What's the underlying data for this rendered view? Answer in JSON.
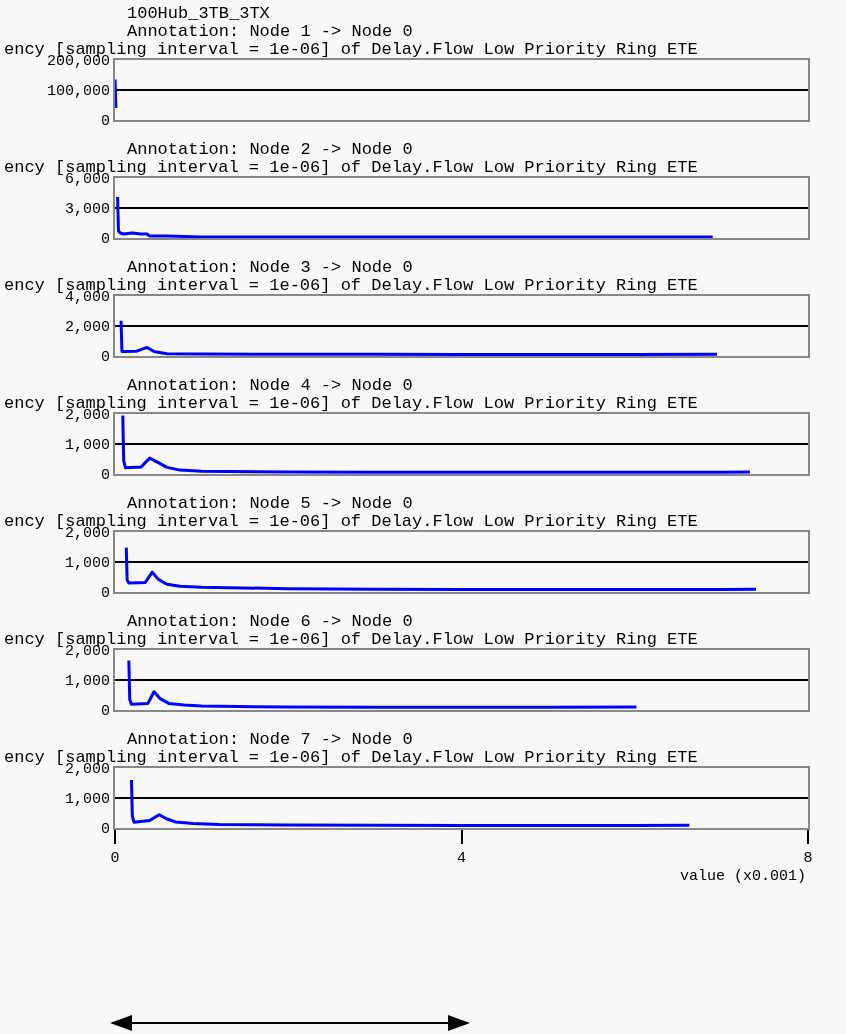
{
  "chart_data": [
    {
      "type": "line",
      "title": "100Hub_3TB_3TX",
      "subtitle": "Annotation: Node 1 -> Node 0",
      "ylabel": "ency [sampling interval = 1e-06] of Delay.Flow Low Priority Ring ETE",
      "xlim": [
        0,
        8
      ],
      "ylim": [
        0,
        200000
      ],
      "yticks": [
        {
          "value": 0,
          "label": "0"
        },
        {
          "value": 100000,
          "label": "100,000"
        },
        {
          "value": 200000,
          "label": "200,000"
        }
      ],
      "grid": "y",
      "tick_labels": "y",
      "marker": "none",
      "line_style": "solid",
      "series": [
        {
          "color": "#0000ff",
          "x": [
            0.0,
            0.01
          ],
          "values": [
            135000,
            40000
          ]
        }
      ]
    },
    {
      "type": "line",
      "subtitle": "Annotation: Node 2 -> Node 0",
      "ylabel": "ency [sampling interval = 1e-06] of Delay.Flow Low Priority Ring ETE",
      "xlim": [
        0,
        8
      ],
      "ylim": [
        0,
        6000
      ],
      "yticks": [
        {
          "value": 0,
          "label": "0"
        },
        {
          "value": 3000,
          "label": "3,000"
        },
        {
          "value": 6000,
          "label": "6,000"
        }
      ],
      "grid": "y",
      "tick_labels": "y",
      "marker": "none",
      "line_style": "solid",
      "series": [
        {
          "color": "#0000ff",
          "x": [
            0.03,
            0.04,
            0.06,
            0.1,
            0.2,
            0.3,
            0.37,
            0.4,
            0.6,
            1.0,
            1.8,
            2.5,
            3.5,
            4.5,
            5.5,
            6.5,
            6.9
          ],
          "values": [
            4100,
            700,
            500,
            400,
            500,
            400,
            400,
            200,
            200,
            100,
            100,
            100,
            100,
            100,
            100,
            100,
            100
          ]
        }
      ]
    },
    {
      "type": "line",
      "subtitle": "Annotation: Node 3 -> Node 0",
      "ylabel": "ency [sampling interval = 1e-06] of Delay.Flow Low Priority Ring ETE",
      "xlim": [
        0,
        8
      ],
      "ylim": [
        0,
        4000
      ],
      "yticks": [
        {
          "value": 0,
          "label": "0"
        },
        {
          "value": 2000,
          "label": "2,000"
        },
        {
          "value": 4000,
          "label": "4,000"
        }
      ],
      "grid": "y",
      "tick_labels": "y",
      "marker": "none",
      "line_style": "solid",
      "series": [
        {
          "color": "#0000ff",
          "x": [
            0.07,
            0.08,
            0.1,
            0.25,
            0.37,
            0.45,
            0.6,
            1.0,
            2.0,
            3.0,
            4.0,
            5.0,
            6.0,
            6.95
          ],
          "values": [
            2350,
            300,
            300,
            320,
            570,
            300,
            150,
            130,
            120,
            110,
            100,
            100,
            100,
            110
          ]
        }
      ]
    },
    {
      "type": "line",
      "subtitle": "Annotation: Node 4 -> Node 0",
      "ylabel": "ency [sampling interval = 1e-06] of Delay.Flow Low Priority Ring ETE",
      "xlim": [
        0,
        8
      ],
      "ylim": [
        0,
        2000
      ],
      "yticks": [
        {
          "value": 0,
          "label": "0"
        },
        {
          "value": 1000,
          "label": "1,000"
        },
        {
          "value": 2000,
          "label": "2,000"
        }
      ],
      "grid": "y",
      "tick_labels": "y",
      "marker": "none",
      "line_style": "solid",
      "series": [
        {
          "color": "#0000ff",
          "x": [
            0.09,
            0.1,
            0.12,
            0.3,
            0.4,
            0.5,
            0.6,
            0.75,
            1.0,
            2.0,
            3.0,
            4.0,
            5.0,
            6.0,
            7.0,
            7.33
          ],
          "values": [
            1950,
            450,
            210,
            230,
            530,
            380,
            220,
            130,
            90,
            70,
            60,
            60,
            60,
            60,
            60,
            70
          ]
        }
      ]
    },
    {
      "type": "line",
      "subtitle": "Annotation: Node 5 -> Node 0",
      "ylabel": "ency [sampling interval = 1e-06] of Delay.Flow Low Priority Ring ETE",
      "xlim": [
        0,
        8
      ],
      "ylim": [
        0,
        2000
      ],
      "yticks": [
        {
          "value": 0,
          "label": "0"
        },
        {
          "value": 1000,
          "label": "1,000"
        },
        {
          "value": 2000,
          "label": "2,000"
        }
      ],
      "grid": "y",
      "tick_labels": "y",
      "marker": "none",
      "line_style": "solid",
      "series": [
        {
          "color": "#0000ff",
          "x": [
            0.13,
            0.14,
            0.16,
            0.35,
            0.43,
            0.5,
            0.6,
            0.75,
            1.0,
            2.0,
            3.0,
            4.0,
            5.0,
            6.0,
            7.0,
            7.4
          ],
          "values": [
            1480,
            400,
            300,
            320,
            660,
            420,
            260,
            190,
            160,
            110,
            90,
            80,
            80,
            80,
            80,
            90
          ]
        }
      ]
    },
    {
      "type": "line",
      "subtitle": "Annotation: Node 6 -> Node 0",
      "ylabel": "ency [sampling interval = 1e-06] of Delay.Flow Low Priority Ring ETE",
      "xlim": [
        0,
        8
      ],
      "ylim": [
        0,
        2000
      ],
      "yticks": [
        {
          "value": 0,
          "label": "0"
        },
        {
          "value": 1000,
          "label": "1,000"
        },
        {
          "value": 2000,
          "label": "2,000"
        }
      ],
      "grid": "y",
      "tick_labels": "y",
      "marker": "none",
      "line_style": "solid",
      "series": [
        {
          "color": "#0000ff",
          "x": [
            0.16,
            0.17,
            0.19,
            0.38,
            0.45,
            0.52,
            0.62,
            0.8,
            1.0,
            2.0,
            3.0,
            4.0,
            5.0,
            6.02
          ],
          "values": [
            1650,
            350,
            190,
            220,
            610,
            380,
            220,
            170,
            130,
            100,
            90,
            90,
            90,
            100
          ]
        }
      ]
    },
    {
      "type": "line",
      "subtitle": "Annotation: Node 7 -> Node 0",
      "ylabel": "ency [sampling interval = 1e-06] of Delay.Flow Low Priority Ring ETE",
      "xlabel": "value (x0.001)",
      "xlim": [
        0,
        8
      ],
      "xticks": [
        0,
        4,
        8
      ],
      "ylim": [
        0,
        2000
      ],
      "yticks": [
        {
          "value": 0,
          "label": "0"
        },
        {
          "value": 1000,
          "label": "1,000"
        },
        {
          "value": 2000,
          "label": "2,000"
        }
      ],
      "grid": "y",
      "marker": "none",
      "line_style": "solid",
      "series": [
        {
          "color": "#0000ff",
          "x": [
            0.19,
            0.2,
            0.22,
            0.4,
            0.51,
            0.6,
            0.7,
            0.9,
            1.2,
            2.0,
            3.0,
            4.0,
            5.0,
            6.0,
            6.63
          ],
          "values": [
            1600,
            400,
            190,
            250,
            440,
            300,
            200,
            150,
            120,
            100,
            90,
            80,
            80,
            80,
            90
          ]
        }
      ]
    }
  ]
}
